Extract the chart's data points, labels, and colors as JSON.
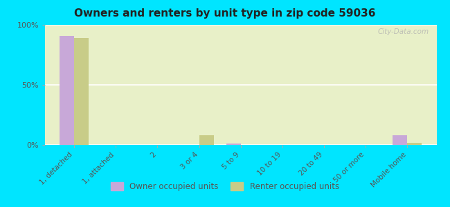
{
  "title": "Owners and renters by unit type in zip code 59036",
  "categories": [
    "1, detached",
    "1, attached",
    "2",
    "3 or 4",
    "5 to 9",
    "10 to 19",
    "20 to 49",
    "50 or more",
    "Mobile home"
  ],
  "owner_values": [
    91,
    0,
    0,
    0,
    1,
    0,
    0,
    0,
    8
  ],
  "renter_values": [
    89,
    0,
    0,
    8,
    0,
    0,
    0,
    0,
    2
  ],
  "owner_color": "#c8a8d8",
  "renter_color": "#c8cc88",
  "plot_bg_color": "#e8f0c8",
  "outer_bg": "#00e5ff",
  "ylim": [
    0,
    100
  ],
  "yticks": [
    0,
    50,
    100
  ],
  "ytick_labels": [
    "0%",
    "50%",
    "100%"
  ],
  "watermark": "City-Data.com",
  "legend_owner": "Owner occupied units",
  "legend_renter": "Renter occupied units",
  "bar_width": 0.35
}
